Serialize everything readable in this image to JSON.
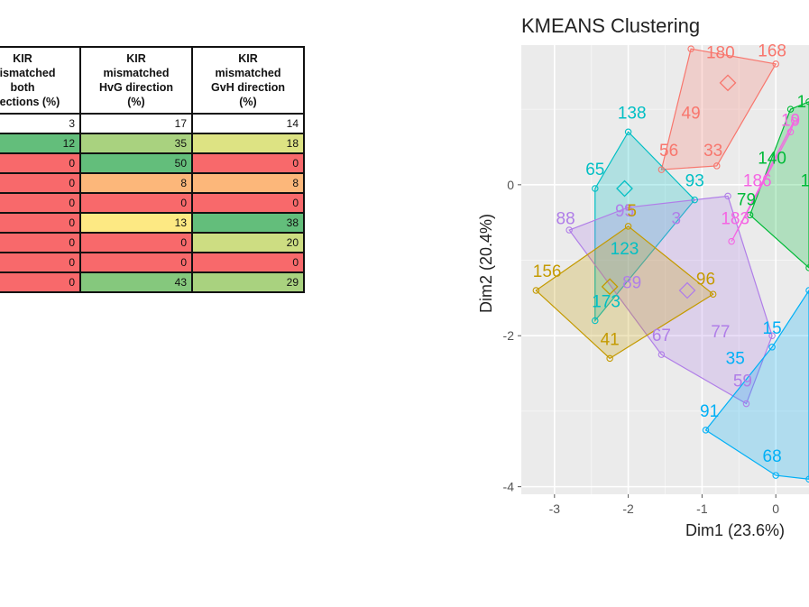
{
  "table": {
    "headers": [
      [
        "KIR",
        "mismatched",
        "both",
        "directions (%)"
      ],
      [
        "KIR",
        "mismatched",
        "HvG direction",
        "(%)"
      ],
      [
        "KIR",
        "mismatched",
        "GvH direction",
        "(%)"
      ]
    ],
    "rows": [
      {
        "cells": [
          "3",
          "17",
          "14"
        ],
        "colors": [
          "#ffffff",
          "#ffffff",
          "#ffffff"
        ]
      },
      {
        "cells": [
          "12",
          "35",
          "18"
        ],
        "colors": [
          "#63be7b",
          "#a9d27f",
          "#dde383"
        ]
      },
      {
        "cells": [
          "0",
          "50",
          "0"
        ],
        "colors": [
          "#f8696b",
          "#63be7b",
          "#f8696b"
        ]
      },
      {
        "cells": [
          "0",
          "8",
          "8"
        ],
        "colors": [
          "#f8696b",
          "#fcb77a",
          "#fcb77a"
        ]
      },
      {
        "cells": [
          "0",
          "0",
          "0"
        ],
        "colors": [
          "#f8696b",
          "#f8696b",
          "#f8696b"
        ]
      },
      {
        "cells": [
          "0",
          "13",
          "38"
        ],
        "colors": [
          "#f8696b",
          "#fde983",
          "#63be7b"
        ]
      },
      {
        "cells": [
          "0",
          "0",
          "20"
        ],
        "colors": [
          "#f8696b",
          "#f8696b",
          "#cddd82"
        ]
      },
      {
        "cells": [
          "0",
          "0",
          "0"
        ],
        "colors": [
          "#f8696b",
          "#f8696b",
          "#f8696b"
        ]
      },
      {
        "cells": [
          "0",
          "43",
          "29"
        ],
        "colors": [
          "#f8696b",
          "#85c87d",
          "#a9d27f"
        ]
      }
    ]
  },
  "chart_data": {
    "type": "scatter",
    "title": "KMEANS Clustering",
    "xlabel": "Dim1 (23.6%)",
    "ylabel": "Dim2 (20.4%)",
    "xlim": [
      -3.45,
      0.45
    ],
    "ylim": [
      -4.1,
      1.85
    ],
    "xticks": [
      -3,
      -2,
      -1,
      0
    ],
    "yticks": [
      -4,
      -2,
      0
    ],
    "grid": true,
    "clusters": [
      {
        "color": "#f8766d",
        "hull": [
          [
            -1.55,
            0.2
          ],
          [
            -1.15,
            1.8
          ],
          [
            0.0,
            1.6
          ],
          [
            -0.8,
            0.25
          ]
        ],
        "points": [
          {
            "x": -0.75,
            "y": 1.75,
            "label": "180"
          },
          {
            "x": -0.05,
            "y": 1.77,
            "label": "168"
          },
          {
            "x": -1.15,
            "y": 0.95,
            "label": "49"
          },
          {
            "x": -0.85,
            "y": 0.45,
            "label": "33"
          },
          {
            "x": -1.45,
            "y": 0.45,
            "label": "56"
          },
          {
            "x": -0.65,
            "y": 1.35,
            "label": ""
          }
        ]
      },
      {
        "color": "#00bfc4",
        "hull": [
          [
            -2.0,
            0.7
          ],
          [
            -2.45,
            -0.05
          ],
          [
            -2.45,
            -1.8
          ],
          [
            -1.1,
            -0.2
          ]
        ],
        "points": [
          {
            "x": -1.95,
            "y": 0.95,
            "label": "138"
          },
          {
            "x": -2.45,
            "y": 0.2,
            "label": "65"
          },
          {
            "x": -1.1,
            "y": 0.05,
            "label": "93"
          },
          {
            "x": -2.05,
            "y": -0.85,
            "label": "123"
          },
          {
            "x": -2.3,
            "y": -1.55,
            "label": "173"
          },
          {
            "x": -2.05,
            "y": -0.05,
            "label": ""
          }
        ]
      },
      {
        "color": "#b07ee8",
        "hull": [
          [
            -2.8,
            -0.6
          ],
          [
            -2.0,
            -0.3
          ],
          [
            -0.65,
            -0.15
          ],
          [
            -0.05,
            -2.0
          ],
          [
            -0.4,
            -2.9
          ],
          [
            -1.55,
            -2.25
          ]
        ],
        "points": [
          {
            "x": -2.85,
            "y": -0.45,
            "label": "88"
          },
          {
            "x": -2.05,
            "y": -0.35,
            "label": "95"
          },
          {
            "x": -1.35,
            "y": -0.45,
            "label": "3"
          },
          {
            "x": -1.95,
            "y": -1.3,
            "label": "89"
          },
          {
            "x": -1.55,
            "y": -2.0,
            "label": "67"
          },
          {
            "x": -0.75,
            "y": -1.95,
            "label": "77"
          },
          {
            "x": -0.45,
            "y": -2.6,
            "label": "59"
          },
          {
            "x": -1.2,
            "y": -1.4,
            "label": ""
          }
        ]
      },
      {
        "color": "#c49a00",
        "hull": [
          [
            -3.25,
            -1.4
          ],
          [
            -2.0,
            -0.55
          ],
          [
            -0.85,
            -1.45
          ],
          [
            -2.25,
            -2.3
          ]
        ],
        "points": [
          {
            "x": -3.1,
            "y": -1.15,
            "label": "156"
          },
          {
            "x": -1.95,
            "y": -0.35,
            "label": "5"
          },
          {
            "x": -0.95,
            "y": -1.25,
            "label": "96"
          },
          {
            "x": -2.25,
            "y": -2.05,
            "label": "41"
          },
          {
            "x": -2.25,
            "y": -1.35,
            "label": ""
          }
        ]
      },
      {
        "color": "#00b0f6",
        "hull": [
          [
            -0.95,
            -3.25
          ],
          [
            0.0,
            -3.85
          ],
          [
            0.45,
            -3.9
          ],
          [
            0.45,
            -1.4
          ],
          [
            -0.05,
            -2.15
          ]
        ],
        "points": [
          {
            "x": -0.9,
            "y": -3.0,
            "label": "91"
          },
          {
            "x": -0.05,
            "y": -3.6,
            "label": "68"
          },
          {
            "x": -0.55,
            "y": -2.3,
            "label": "35"
          },
          {
            "x": -0.05,
            "y": -1.9,
            "label": "15"
          }
        ]
      },
      {
        "color": "#00ba38",
        "hull": [
          [
            -0.35,
            -0.4
          ],
          [
            0.2,
            1.0
          ],
          [
            0.45,
            1.1
          ],
          [
            0.45,
            -1.1
          ]
        ],
        "points": [
          {
            "x": 0.35,
            "y": 1.1,
            "label": "1"
          },
          {
            "x": -0.05,
            "y": 0.35,
            "label": "140"
          },
          {
            "x": -0.4,
            "y": -0.2,
            "label": "79"
          },
          {
            "x": 0.4,
            "y": 0.05,
            "label": "1"
          }
        ]
      },
      {
        "color": "#f564e3",
        "hull": [
          [
            -0.6,
            -0.75
          ],
          [
            0.2,
            0.7
          ],
          [
            0.25,
            0.85
          ]
        ],
        "points": [
          {
            "x": 0.2,
            "y": 0.85,
            "label": "19"
          },
          {
            "x": -0.25,
            "y": 0.05,
            "label": "186"
          },
          {
            "x": -0.55,
            "y": -0.45,
            "label": "183"
          }
        ]
      }
    ]
  }
}
